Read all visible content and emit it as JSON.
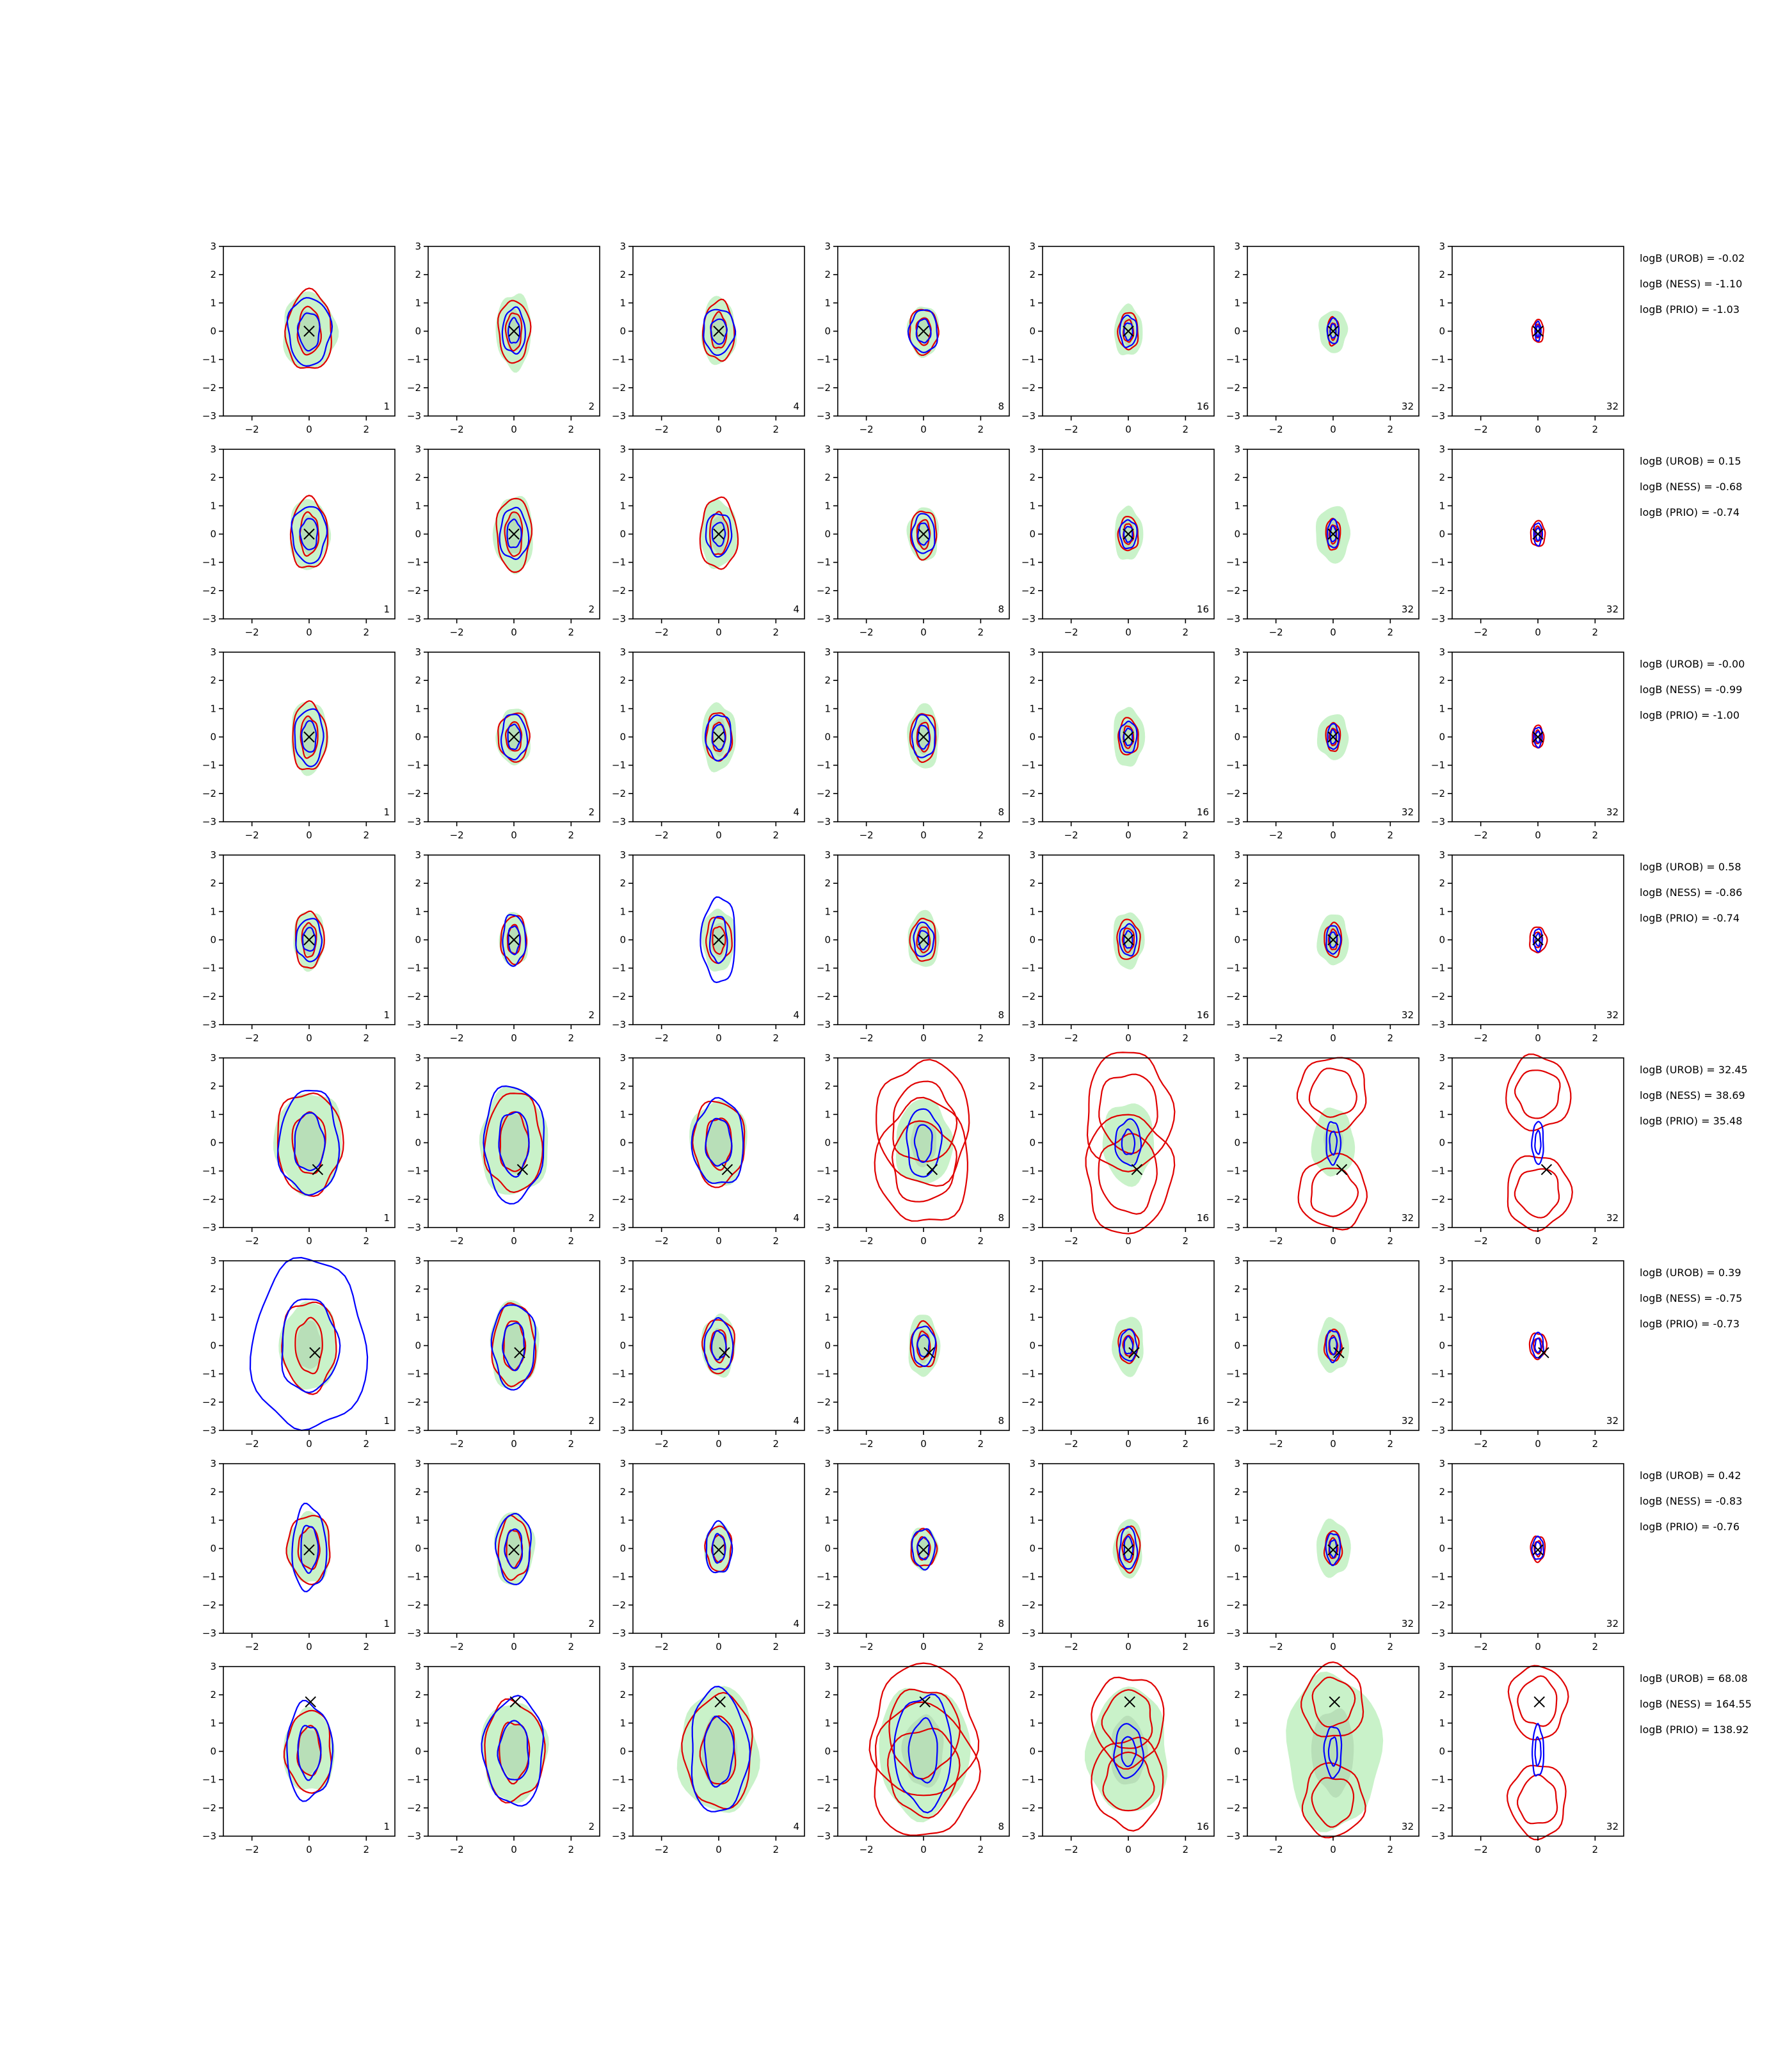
{
  "chart_data": {
    "type": "contour-grid",
    "rows": 8,
    "cols": 7,
    "panel_numbers": [
      "1",
      "2",
      "4",
      "8",
      "16",
      "32",
      "32"
    ],
    "xlim": [
      -3,
      3
    ],
    "ylim": [
      -3,
      3
    ],
    "xticks": [
      -2,
      0,
      2
    ],
    "yticks": [
      -3,
      -2,
      -1,
      0,
      1,
      2,
      3
    ],
    "colors": {
      "blue": "#0000ff",
      "red": "#e00000",
      "fill_light": "#c9f2c9",
      "fill_dark": "#a9cfa9",
      "marker": "#000000"
    },
    "rows_data": [
      {
        "marker": [
          0.0,
          0.0
        ],
        "bimodal": false,
        "logB": [
          "logB (UROB) = -0.02",
          "logB (NESS) = -1.10",
          "logB (PRIO) = -1.03"
        ],
        "spread": [
          [
            0.95,
            1.35,
            0.8,
            1.4,
            0.75,
            1.2
          ],
          [
            0.62,
            1.35,
            0.55,
            1.1,
            0.4,
            0.8
          ],
          [
            0.6,
            1.2,
            0.55,
            1.05,
            0.55,
            0.8
          ],
          [
            0.55,
            0.9,
            0.5,
            0.8,
            0.5,
            0.75
          ],
          [
            0.5,
            0.9,
            0.35,
            0.65,
            0.3,
            0.55
          ],
          [
            0.5,
            0.75,
            0.2,
            0.5,
            0.2,
            0.45
          ],
          [
            0,
            0,
            0.2,
            0.4,
            0.1,
            0.35
          ]
        ]
      },
      {
        "marker": [
          0.0,
          0.0
        ],
        "bimodal": false,
        "logB": [
          "logB (UROB) = 0.15",
          "logB (NESS) = -0.68",
          "logB (PRIO) = -0.74"
        ],
        "spread": [
          [
            0.7,
            1.25,
            0.65,
            1.25,
            0.6,
            1.0
          ],
          [
            0.7,
            1.35,
            0.6,
            1.3,
            0.5,
            0.9
          ],
          [
            0.65,
            1.2,
            0.65,
            1.25,
            0.45,
            0.75
          ],
          [
            0.55,
            0.95,
            0.45,
            0.85,
            0.4,
            0.7
          ],
          [
            0.5,
            0.95,
            0.35,
            0.6,
            0.3,
            0.5
          ],
          [
            0.6,
            1.0,
            0.25,
            0.55,
            0.2,
            0.5
          ],
          [
            0,
            0,
            0.25,
            0.45,
            0.15,
            0.4
          ]
        ]
      },
      {
        "marker": [
          0.0,
          0.0
        ],
        "bimodal": false,
        "logB": [
          "logB (UROB) = -0.00",
          "logB (NESS) = -0.99",
          "logB (PRIO) = -1.00"
        ],
        "spread": [
          [
            0.65,
            1.3,
            0.6,
            1.2,
            0.5,
            1.0
          ],
          [
            0.6,
            1.0,
            0.55,
            0.85,
            0.45,
            0.8
          ],
          [
            0.6,
            1.2,
            0.45,
            0.85,
            0.45,
            0.8
          ],
          [
            0.55,
            1.15,
            0.45,
            0.85,
            0.4,
            0.75
          ],
          [
            0.55,
            1.05,
            0.35,
            0.65,
            0.3,
            0.55
          ],
          [
            0.55,
            0.8,
            0.25,
            0.5,
            0.2,
            0.45
          ],
          [
            0,
            0,
            0.2,
            0.4,
            0.15,
            0.35
          ]
        ]
      },
      {
        "marker": [
          0.0,
          0.0
        ],
        "bimodal": false,
        "logB": [
          "logB (UROB) = 0.58",
          "logB (NESS) = -0.86",
          "logB (PRIO) = -0.74"
        ],
        "spread": [
          [
            0.55,
            1.05,
            0.5,
            1.0,
            0.45,
            0.75
          ],
          [
            0.5,
            0.95,
            0.45,
            0.85,
            0.4,
            0.9
          ],
          [
            0.6,
            1.1,
            0.45,
            0.8,
            0.6,
            1.5
          ],
          [
            0.55,
            1.0,
            0.45,
            0.75,
            0.35,
            0.6
          ],
          [
            0.55,
            1.0,
            0.4,
            0.7,
            0.3,
            0.55
          ],
          [
            0.55,
            0.9,
            0.3,
            0.6,
            0.25,
            0.5
          ],
          [
            0,
            0,
            0.3,
            0.45,
            0.15,
            0.4
          ]
        ]
      },
      {
        "marker": [
          0.3,
          -0.95
        ],
        "bimodal": true,
        "logB": [
          "logB (UROB) = 32.45",
          "logB (NESS) = 38.69",
          "logB (PRIO) = 35.48"
        ],
        "spread": [
          [
            1.2,
            1.8,
            1.15,
            1.8,
            1.05,
            1.85
          ],
          [
            1.2,
            1.9,
            1.0,
            1.75,
            1.05,
            2.05
          ],
          [
            1.0,
            1.5,
            0.9,
            1.5,
            0.9,
            1.5
          ],
          [
            1.0,
            1.5,
            1.3,
            1.85,
            0.6,
            1.2
          ],
          [
            0.9,
            1.45,
            1.2,
            1.8,
            0.45,
            0.8
          ],
          [
            0.75,
            1.2,
            0.95,
            1.0,
            0.25,
            0.75
          ],
          [
            0,
            0,
            0.9,
            1.0,
            0.2,
            0.75
          ]
        ]
      },
      {
        "marker": [
          0.2,
          -0.25
        ],
        "bimodal": false,
        "logB": [
          "logB (UROB) = 0.39",
          "logB (NESS) = -0.75",
          "logB (PRIO) = -0.73"
        ],
        "spread": [
          [
            1.0,
            1.55,
            0.95,
            1.6,
            2.0,
            3.0
          ],
          [
            0.85,
            1.55,
            0.75,
            1.45,
            0.75,
            1.5
          ],
          [
            0.6,
            1.1,
            0.55,
            0.95,
            0.5,
            0.9
          ],
          [
            0.55,
            1.1,
            0.45,
            0.8,
            0.4,
            0.7
          ],
          [
            0.55,
            1.05,
            0.35,
            0.6,
            0.3,
            0.55
          ],
          [
            0.55,
            0.95,
            0.3,
            0.55,
            0.25,
            0.55
          ],
          [
            0,
            0,
            0.3,
            0.45,
            0.2,
            0.45
          ]
        ]
      },
      {
        "marker": [
          0.0,
          -0.05
        ],
        "bimodal": false,
        "logB": [
          "logB (UROB) = 0.42",
          "logB (NESS) = -0.83",
          "logB (PRIO) = -0.76"
        ],
        "spread": [
          [
            0.75,
            1.25,
            0.75,
            1.2,
            0.6,
            1.5
          ],
          [
            0.7,
            1.3,
            0.55,
            1.1,
            0.6,
            1.25
          ],
          [
            0.5,
            0.85,
            0.45,
            0.8,
            0.45,
            0.9
          ],
          [
            0.5,
            0.75,
            0.45,
            0.65,
            0.4,
            0.7
          ],
          [
            0.5,
            1.05,
            0.4,
            0.8,
            0.3,
            0.75
          ],
          [
            0.6,
            1.0,
            0.3,
            0.6,
            0.25,
            0.55
          ],
          [
            0,
            0,
            0.25,
            0.45,
            0.2,
            0.4
          ]
        ]
      },
      {
        "marker": [
          0.05,
          1.75
        ],
        "bimodal": true,
        "logB": [
          "logB (UROB) = 68.08",
          "logB (NESS) = 164.55",
          "logB (PRIO) = 138.92"
        ],
        "spread": [
          [
            0.9,
            1.45,
            0.8,
            1.45,
            0.8,
            1.7
          ],
          [
            1.15,
            1.75,
            1.05,
            1.75,
            1.05,
            1.9
          ],
          [
            1.4,
            2.2,
            1.2,
            2.0,
            1.0,
            2.2
          ],
          [
            1.6,
            2.3,
            1.45,
            2.0,
            1.0,
            2.0
          ],
          [
            1.4,
            2.2,
            1.0,
            1.35,
            0.5,
            0.95
          ],
          [
            1.65,
            2.75,
            0.85,
            1.0,
            0.3,
            0.9
          ],
          [
            0,
            0,
            0.8,
            1.0,
            0.2,
            0.9
          ]
        ]
      }
    ]
  }
}
